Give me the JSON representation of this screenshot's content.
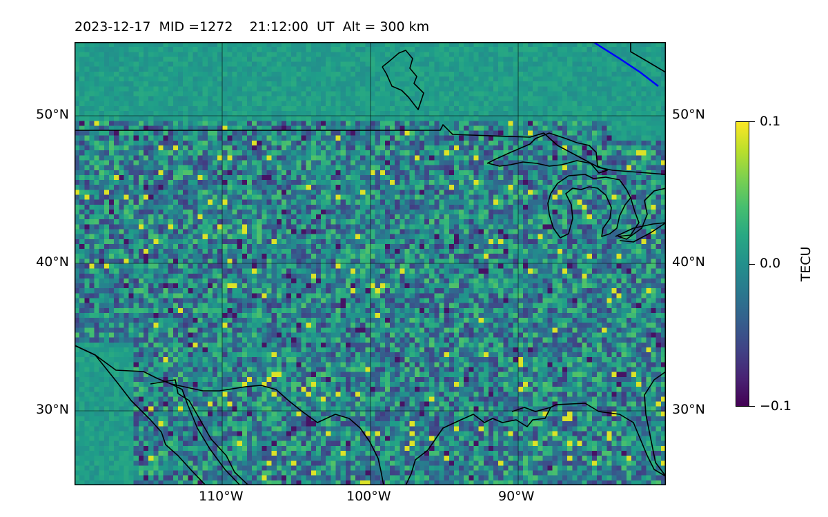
{
  "title": "2023-12-17  MID =1272    21:12:00  UT  Alt = 300 km",
  "map": {
    "lat_ticks": [
      "50°N",
      "40°N",
      "30°N"
    ],
    "lon_ticks": [
      "110°W",
      "100°W",
      "90°W"
    ],
    "extent": {
      "lon_min": -120,
      "lon_max": -80,
      "lat_min": 25,
      "lat_max": 55
    }
  },
  "colorbar": {
    "label": "TECU",
    "ticks": [
      "0.1",
      "0.0",
      "−0.1"
    ],
    "min": -0.1,
    "max": 0.1,
    "colormap": "viridis"
  },
  "colors": {
    "coastline": "#000000",
    "gridline": "#000000",
    "terminator": "#0000ff"
  }
}
